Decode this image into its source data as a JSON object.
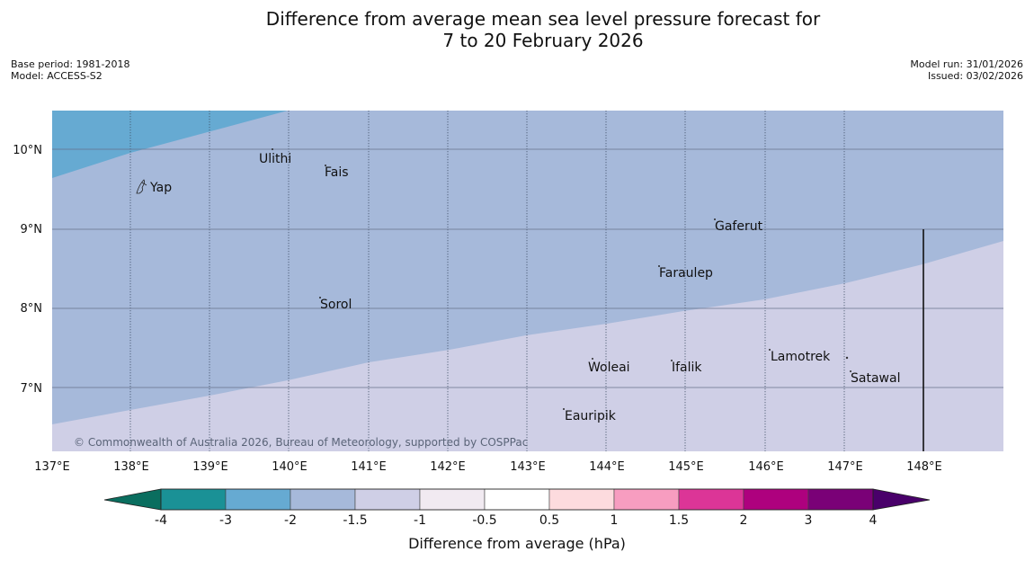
{
  "title": {
    "line1": "Difference from average mean sea level pressure forecast for",
    "line2": "7 to 20 February 2026"
  },
  "meta_left": {
    "base_period": "Base period: 1981-2018",
    "model": "Model: ACCESS-S2"
  },
  "meta_right": {
    "model_run": "Model run: 31/01/2026",
    "issued": "Issued: 03/02/2026"
  },
  "copyright": "© Commonwealth of Australia 2026, Bureau of Meteorology, supported by COSPPac",
  "axes": {
    "lon_labels": [
      "137°E",
      "138°E",
      "139°E",
      "140°E",
      "141°E",
      "142°E",
      "143°E",
      "144°E",
      "145°E",
      "146°E",
      "147°E",
      "148°E"
    ],
    "lat_labels": [
      "10°N",
      "9°N",
      "8°N",
      "7°N"
    ]
  },
  "places": [
    {
      "name": "Yap"
    },
    {
      "name": "Ulithi"
    },
    {
      "name": "Fais"
    },
    {
      "name": "Gaferut"
    },
    {
      "name": "Faraulep"
    },
    {
      "name": "Sorol"
    },
    {
      "name": "Lamotrek"
    },
    {
      "name": "Woleai"
    },
    {
      "name": "Ifalik"
    },
    {
      "name": "Satawal"
    },
    {
      "name": "Eauripik"
    }
  ],
  "colorbar": {
    "label": "Difference from average (hPa)",
    "tick_labels": [
      "-4",
      "-3",
      "-2",
      "-1.5",
      "-1",
      "-0.5",
      "0.5",
      "1",
      "1.5",
      "2",
      "3",
      "4"
    ],
    "colors": {
      "under": "#0a6e5f",
      "bins": [
        "#1a9196",
        "#66aad2",
        "#a6b9da",
        "#cfcfe6",
        "#f1eaf1",
        "#ffffff",
        "#fddbde",
        "#f79dc0",
        "#dc3597",
        "#ae017e",
        "#7a0177"
      ],
      "over": "#49006a"
    }
  },
  "fields": {
    "zone_minus3": "#66aad2",
    "zone_minus2": "#a6b9da",
    "zone_minus15": "#cfcfe6"
  }
}
